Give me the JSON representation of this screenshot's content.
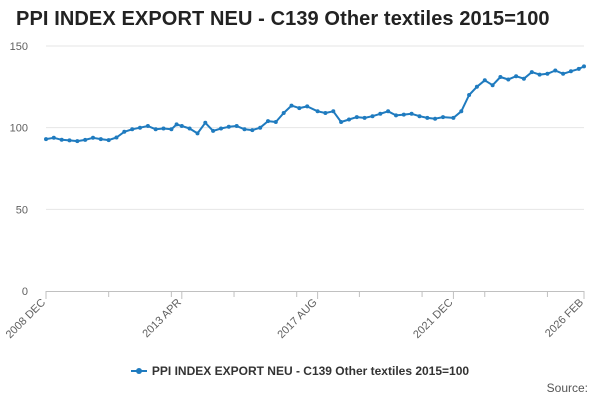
{
  "title": "PPI INDEX EXPORT NEU - C139 Other textiles 2015=100",
  "source_label": "Source:",
  "colors": {
    "series": "#1f7bbf",
    "grid": "#e6e6e6",
    "axis": "#c0c0c0"
  },
  "chart_data": {
    "type": "line",
    "title": "PPI INDEX EXPORT NEU - C139 Other textiles 2015=100",
    "xlabel": "",
    "ylabel": "",
    "ylim": [
      0,
      150
    ],
    "yticks": [
      0,
      50,
      100,
      150
    ],
    "x_range": [
      "2008 DEC",
      "2026 FEB"
    ],
    "xtick_labels": [
      "2008 DEC",
      "2013 APR",
      "2017 AUG",
      "2021 DEC",
      "2026 FEB"
    ],
    "grid": "horizontal",
    "legend_position": "bottom",
    "series": [
      {
        "name": "PPI INDEX EXPORT NEU - C139 Other textiles 2015=100",
        "marker": "circle",
        "points": [
          [
            "2008 DEC",
            93.0
          ],
          [
            "2009 MAR",
            93.8
          ],
          [
            "2009 JUN",
            92.6
          ],
          [
            "2009 SEP",
            92.2
          ],
          [
            "2009 DEC",
            91.8
          ],
          [
            "2010 MAR",
            92.5
          ],
          [
            "2010 JUN",
            93.8
          ],
          [
            "2010 SEP",
            93.0
          ],
          [
            "2010 DEC",
            92.4
          ],
          [
            "2011 MAR",
            94.0
          ],
          [
            "2011 JUN",
            97.5
          ],
          [
            "2011 SEP",
            99.0
          ],
          [
            "2011 DEC",
            100.0
          ],
          [
            "2012 MAR",
            101.0
          ],
          [
            "2012 JUN",
            99.0
          ],
          [
            "2012 SEP",
            99.5
          ],
          [
            "2012 DEC",
            99.0
          ],
          [
            "2013 FEB",
            102.0
          ],
          [
            "2013 APR",
            101.0
          ],
          [
            "2013 JUL",
            99.5
          ],
          [
            "2013 OCT",
            96.5
          ],
          [
            "2014 JAN",
            103.0
          ],
          [
            "2014 APR",
            98.0
          ],
          [
            "2014 JUL",
            99.5
          ],
          [
            "2014 OCT",
            100.5
          ],
          [
            "2015 JAN",
            101.0
          ],
          [
            "2015 APR",
            99.0
          ],
          [
            "2015 JUL",
            98.5
          ],
          [
            "2015 OCT",
            100.0
          ],
          [
            "2016 JAN",
            104.0
          ],
          [
            "2016 APR",
            103.5
          ],
          [
            "2016 JUL",
            109.0
          ],
          [
            "2016 OCT",
            113.5
          ],
          [
            "2017 JAN",
            112.0
          ],
          [
            "2017 APR",
            113.0
          ],
          [
            "2017 AUG",
            110.0
          ],
          [
            "2017 NOV",
            109.0
          ],
          [
            "2018 FEB",
            110.0
          ],
          [
            "2018 MAY",
            103.5
          ],
          [
            "2018 AUG",
            105.0
          ],
          [
            "2018 NOV",
            106.5
          ],
          [
            "2019 FEB",
            106.0
          ],
          [
            "2019 MAY",
            107.0
          ],
          [
            "2019 AUG",
            108.5
          ],
          [
            "2019 NOV",
            110.0
          ],
          [
            "2020 FEB",
            107.5
          ],
          [
            "2020 MAY",
            108.0
          ],
          [
            "2020 AUG",
            108.5
          ],
          [
            "2020 NOV",
            107.0
          ],
          [
            "2021 FEB",
            106.0
          ],
          [
            "2021 MAY",
            105.5
          ],
          [
            "2021 AUG",
            106.5
          ],
          [
            "2021 DEC",
            106.0
          ],
          [
            "2022 MAR",
            110.0
          ],
          [
            "2022 JUN",
            120.0
          ],
          [
            "2022 SEP",
            125.0
          ],
          [
            "2022 DEC",
            129.0
          ],
          [
            "2023 MAR",
            126.0
          ],
          [
            "2023 JUN",
            131.0
          ],
          [
            "2023 SEP",
            129.5
          ],
          [
            "2023 DEC",
            131.5
          ],
          [
            "2024 MAR",
            130.0
          ],
          [
            "2024 JUN",
            134.0
          ],
          [
            "2024 SEP",
            132.5
          ],
          [
            "2024 DEC",
            133.0
          ],
          [
            "2025 MAR",
            135.0
          ],
          [
            "2025 JUN",
            133.0
          ],
          [
            "2025 SEP",
            134.5
          ],
          [
            "2025 DEC",
            136.0
          ],
          [
            "2026 FEB",
            137.5
          ]
        ]
      }
    ]
  }
}
